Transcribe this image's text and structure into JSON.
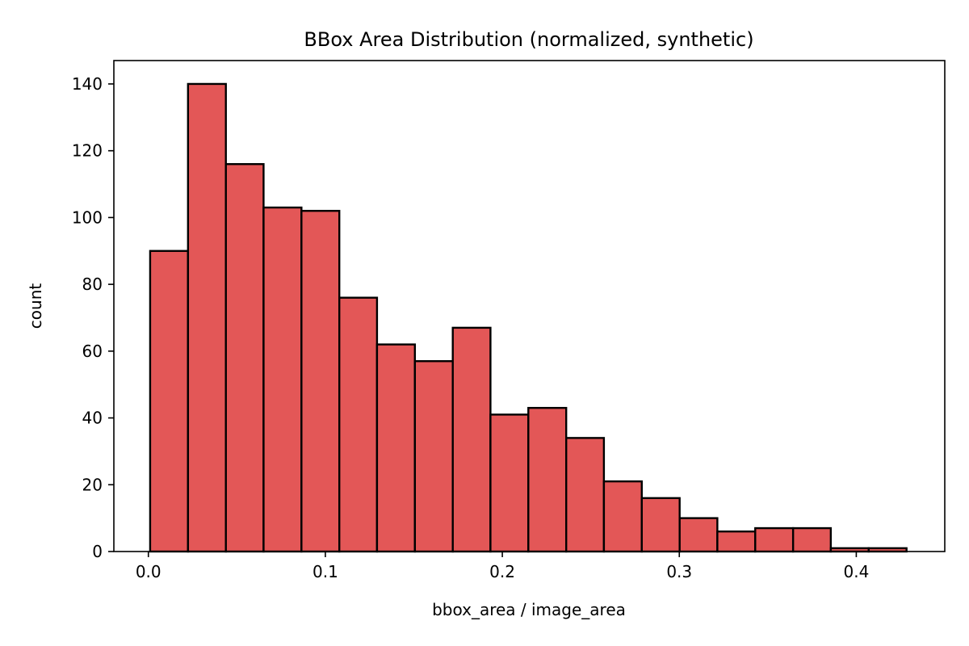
{
  "chart_data": {
    "type": "bar",
    "title": "BBox Area Distribution (normalized, synthetic)",
    "xlabel": "bbox_area / image_area",
    "ylabel": "count",
    "xlim": [
      -0.0195,
      0.45
    ],
    "ylim": [
      0,
      147
    ],
    "xticks": [
      0.0,
      0.1,
      0.2,
      0.3,
      0.4
    ],
    "xtick_labels": [
      "0.0",
      "0.1",
      "0.2",
      "0.3",
      "0.4"
    ],
    "yticks": [
      0,
      20,
      40,
      60,
      80,
      100,
      120,
      140
    ],
    "ytick_labels": [
      "0",
      "20",
      "40",
      "60",
      "80",
      "100",
      "120",
      "140"
    ],
    "bins": [
      {
        "x0": 0.001,
        "x1": 0.0224,
        "value": 90
      },
      {
        "x0": 0.0224,
        "x1": 0.0438,
        "value": 140
      },
      {
        "x0": 0.0438,
        "x1": 0.0651,
        "value": 116
      },
      {
        "x0": 0.0651,
        "x1": 0.0865,
        "value": 103
      },
      {
        "x0": 0.0865,
        "x1": 0.1079,
        "value": 102
      },
      {
        "x0": 0.1079,
        "x1": 0.1292,
        "value": 76
      },
      {
        "x0": 0.1292,
        "x1": 0.1506,
        "value": 62
      },
      {
        "x0": 0.1506,
        "x1": 0.172,
        "value": 57
      },
      {
        "x0": 0.172,
        "x1": 0.1933,
        "value": 67
      },
      {
        "x0": 0.1933,
        "x1": 0.2147,
        "value": 41
      },
      {
        "x0": 0.2147,
        "x1": 0.2361,
        "value": 43
      },
      {
        "x0": 0.2361,
        "x1": 0.2574,
        "value": 34
      },
      {
        "x0": 0.2574,
        "x1": 0.2788,
        "value": 21
      },
      {
        "x0": 0.2788,
        "x1": 0.3002,
        "value": 16
      },
      {
        "x0": 0.3002,
        "x1": 0.3215,
        "value": 10
      },
      {
        "x0": 0.3215,
        "x1": 0.3429,
        "value": 6
      },
      {
        "x0": 0.3429,
        "x1": 0.3643,
        "value": 7
      },
      {
        "x0": 0.3643,
        "x1": 0.3856,
        "value": 7
      },
      {
        "x0": 0.3856,
        "x1": 0.407,
        "value": 1
      },
      {
        "x0": 0.407,
        "x1": 0.4284,
        "value": 1
      }
    ],
    "bar_color": "#e35757",
    "edge_color": "#000000",
    "grid": false,
    "legend": "none"
  }
}
